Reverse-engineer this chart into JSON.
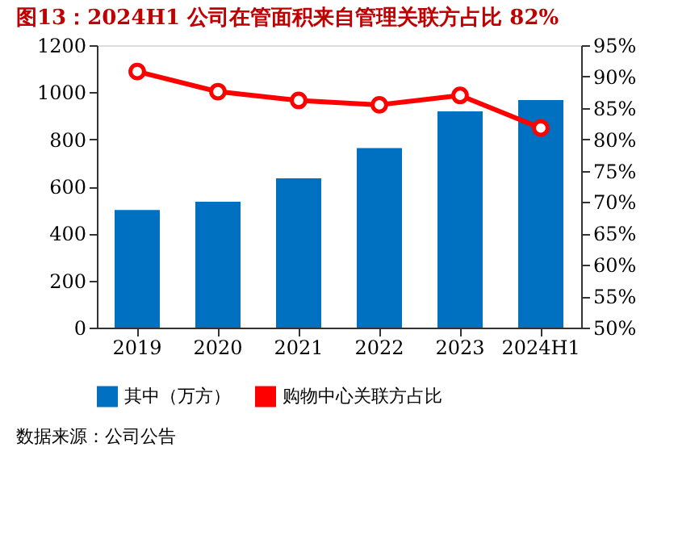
{
  "chart_data": {
    "type": "bar",
    "title": "图13：2024H1 公司在管面积来自管理关联方占比 82%",
    "categories": [
      "2019",
      "2020",
      "2021",
      "2022",
      "2023",
      "2024H1"
    ],
    "series": [
      {
        "name": "其中（万方）",
        "color": "#0070c0",
        "values": [
          500,
          535,
          634,
          763,
          919,
          967
        ]
      },
      {
        "name": "购物中心关联方占比",
        "type": "line",
        "axis": "y2",
        "color": "#ff0000",
        "values": [
          90.8,
          87.6,
          86.2,
          85.5,
          87.0,
          81.8
        ]
      }
    ],
    "ylim": [
      0,
      1200
    ],
    "yticks": [
      0,
      200,
      400,
      600,
      800,
      1000,
      1200
    ],
    "y2lim": [
      50,
      95
    ],
    "y2ticks": [
      {
        "value": 50,
        "label": "50%"
      },
      {
        "value": 55,
        "label": "55%"
      },
      {
        "value": 60,
        "label": "60%"
      },
      {
        "value": 65,
        "label": "65%"
      },
      {
        "value": 70,
        "label": "70%"
      },
      {
        "value": 75,
        "label": "75%"
      },
      {
        "value": 80,
        "label": "80%"
      },
      {
        "value": 85,
        "label": "85%"
      },
      {
        "value": 90,
        "label": "90%"
      },
      {
        "value": 95,
        "label": "95%"
      }
    ],
    "marker": "circle",
    "grid": false,
    "legend": "bottom",
    "annotations": [
      "数据来源：公司公告"
    ]
  }
}
